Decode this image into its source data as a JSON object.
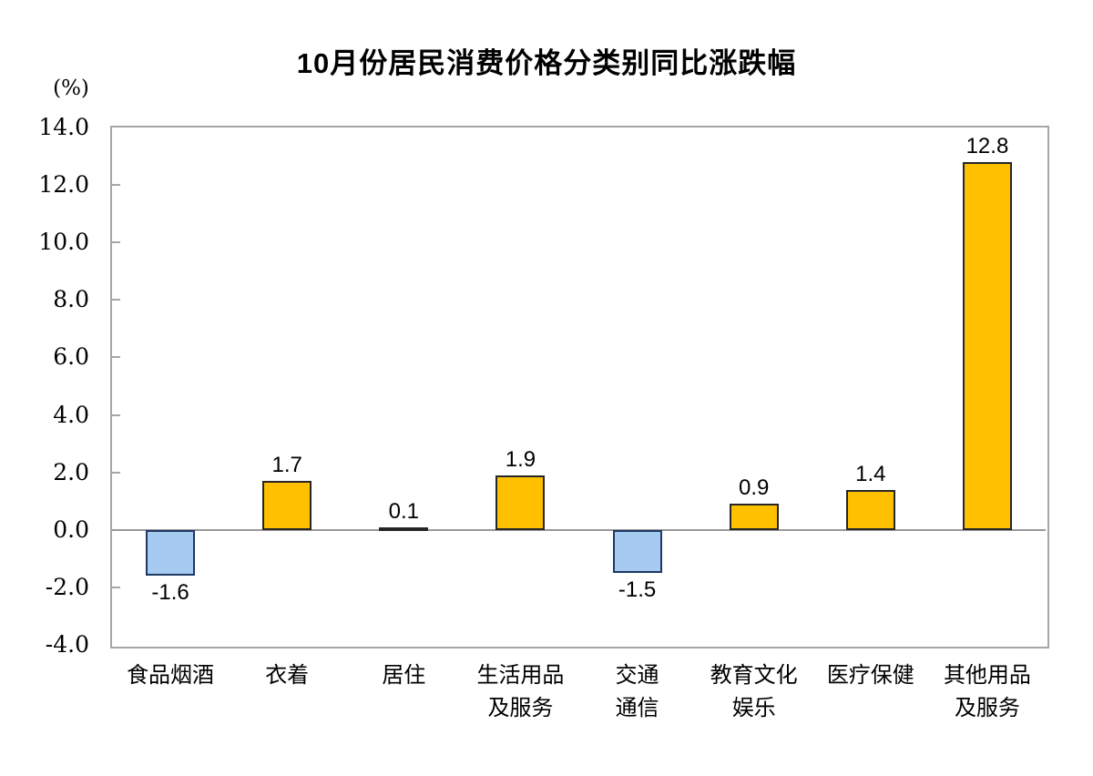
{
  "page": {
    "background": "#ffffff"
  },
  "chart_data": {
    "type": "bar",
    "title": "10月份居民消费价格分类别同比涨跌幅",
    "unit_label": "(%)",
    "categories": [
      "食品烟酒",
      "衣着",
      "居住",
      "生活用品\n及服务",
      "交通\n通信",
      "教育文化\n娱乐",
      "医疗保健",
      "其他用品\n及服务"
    ],
    "values": [
      -1.6,
      1.7,
      0.1,
      1.9,
      -1.5,
      0.9,
      1.4,
      12.8
    ],
    "value_labels": [
      "-1.6",
      "1.7",
      "0.1",
      "1.9",
      "-1.5",
      "0.9",
      "1.4",
      "12.8"
    ],
    "xlabel": "",
    "ylabel": "(%)",
    "ylim": [
      -4,
      14
    ],
    "yticks": [
      14,
      12,
      10,
      8,
      6,
      4,
      2,
      0,
      -2,
      -4
    ],
    "ytick_labels": [
      "14.0",
      "12.0",
      "10.0",
      "8.0",
      "6.0",
      "4.0",
      "2.0",
      "0.0",
      "-2.0",
      "-4.0"
    ],
    "grid": false,
    "legend": "none",
    "label_policy": "positive values labeled above bar, negative values labeled below bar",
    "colors": {
      "positive_fill": "#FFC000",
      "positive_border": "#262626",
      "negative_fill": "#A6CAF0",
      "negative_border": "#1F3864",
      "frame": "#A6A6A6",
      "zero_line": "#999999",
      "text": "#000000"
    }
  }
}
